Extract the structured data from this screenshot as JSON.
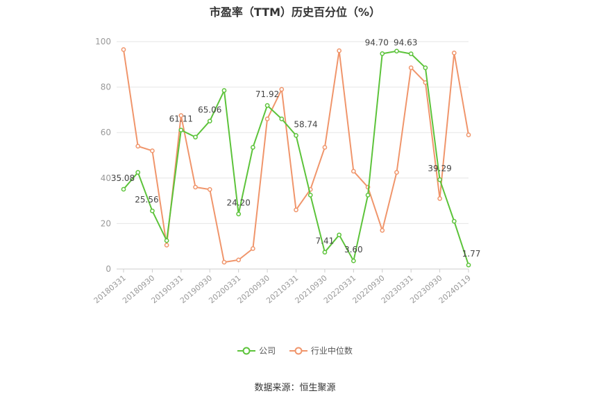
{
  "chart_data": {
    "type": "line",
    "title": "市盈率（TTM）历史百分位（%）",
    "ylim": [
      0,
      100
    ],
    "yticks": [
      0,
      20,
      40,
      60,
      80,
      100
    ],
    "grid": "horizontal",
    "legend_position": "bottom",
    "x": [
      "20180331",
      "20180630",
      "20180930",
      "20181231",
      "20190331",
      "20190630",
      "20190930",
      "20191231",
      "20200331",
      "20200630",
      "20200930",
      "20201231",
      "20210331",
      "20210630",
      "20210930",
      "20211231",
      "20220331",
      "20220630",
      "20220930",
      "20221231",
      "20230331",
      "20230630",
      "20230930",
      "20231231",
      "20240119"
    ],
    "x_tick_labels": [
      "20180331",
      "20180930",
      "20190331",
      "20190930",
      "20200331",
      "20200930",
      "20210331",
      "20210930",
      "20220331",
      "20220930",
      "20230331",
      "20230930",
      "20240119"
    ],
    "series": [
      {
        "name": "公司",
        "color": "#5cc33a",
        "values": [
          35.08,
          42.5,
          25.56,
          12.5,
          61.11,
          58.0,
          65.06,
          78.5,
          24.2,
          53.5,
          71.92,
          66.0,
          58.74,
          32.5,
          7.41,
          15.0,
          3.6,
          32.5,
          94.7,
          95.8,
          94.63,
          88.5,
          39.29,
          21.0,
          1.77
        ],
        "labels": {
          "0": "35.08",
          "2": "25.56",
          "4": "61.11",
          "6": "65.06",
          "8": "24.20",
          "10": "71.92",
          "12": "58.74",
          "14": "7.41",
          "16": "3.60",
          "18": "94.70",
          "20": "94.63",
          "22": "39.29",
          "24": "1.77"
        }
      },
      {
        "name": "行业中位数",
        "color": "#f0956b",
        "values": [
          96.5,
          54.0,
          52.0,
          10.5,
          67.5,
          36.0,
          35.0,
          3.0,
          4.0,
          9.0,
          66.0,
          79.0,
          26.0,
          35.0,
          53.5,
          96.0,
          43.0,
          36.0,
          17.0,
          42.5,
          88.5,
          82.0,
          31.0,
          95.0,
          59.0
        ]
      }
    ]
  },
  "legend": {
    "company_label": "公司",
    "industry_label": "行业中位数"
  },
  "source": "数据来源：恒生聚源"
}
